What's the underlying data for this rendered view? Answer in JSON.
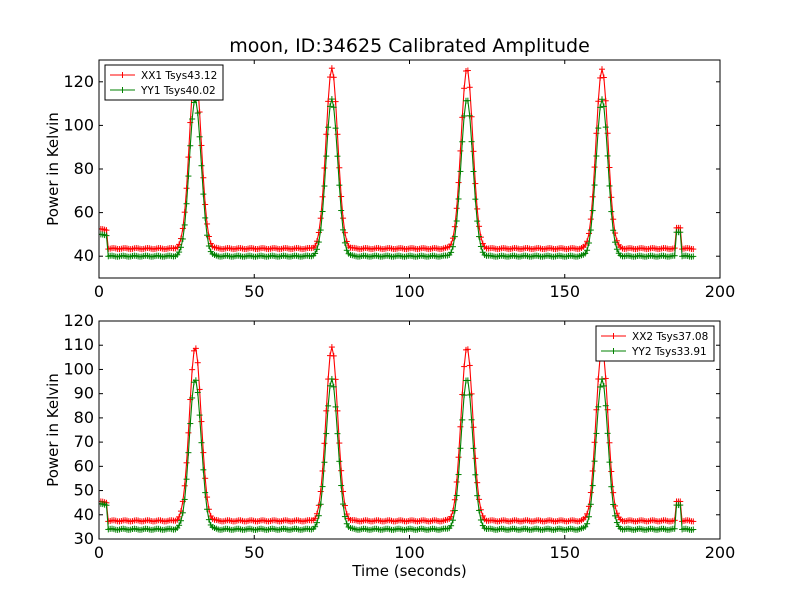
{
  "chart_data": [
    {
      "type": "line",
      "title": "moon, ID:34625 Calibrated Amplitude",
      "xlabel": "",
      "ylabel": "Power in Kelvin",
      "xlim": [
        0,
        200
      ],
      "ylim": [
        30,
        130
      ],
      "xticks": [
        "0",
        "50",
        "100",
        "150",
        "200"
      ],
      "yticks": [
        "40",
        "60",
        "80",
        "100",
        "120"
      ],
      "legend_position": "top-left",
      "grid": false,
      "peak_times": [
        31,
        75,
        118.5,
        162
      ],
      "series": [
        {
          "name": "XX1 Tsys43.12",
          "color": "#ff0000",
          "baseline": 43.5,
          "start_level": 52.5,
          "peak": 126,
          "blip": 53
        },
        {
          "name": "YY1 Tsys40.02",
          "color": "#008000",
          "baseline": 40.0,
          "start_level": 50.0,
          "peak": 112,
          "blip": 51
        }
      ]
    },
    {
      "type": "line",
      "title": "",
      "xlabel": "Time (seconds)",
      "ylabel": "Power in Kelvin",
      "xlim": [
        0,
        200
      ],
      "ylim": [
        30,
        120
      ],
      "xticks": [
        "0",
        "50",
        "100",
        "150",
        "200"
      ],
      "yticks": [
        "30",
        "40",
        "50",
        "60",
        "70",
        "80",
        "90",
        "100",
        "110",
        "120"
      ],
      "legend_position": "top-right",
      "grid": false,
      "peak_times": [
        31,
        75,
        118.5,
        162
      ],
      "series": [
        {
          "name": "XX2 Tsys37.08",
          "color": "#ff0000",
          "baseline": 37.5,
          "start_level": 45.5,
          "peak": 109,
          "blip": 45.5
        },
        {
          "name": "YY2 Tsys33.91",
          "color": "#008000",
          "baseline": 34.0,
          "start_level": 44.5,
          "peak": 96,
          "blip": 44
        }
      ]
    }
  ]
}
